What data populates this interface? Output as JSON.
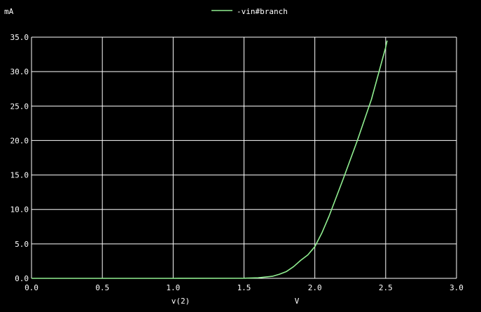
{
  "colors": {
    "background": "#000000",
    "grid": "#ffffff",
    "text": "#ffffff",
    "trace": "#90ee90"
  },
  "chart_data": {
    "type": "line",
    "title": "",
    "xlabel": "v(2)",
    "xunit": "V",
    "yunit": "mA",
    "xlim": [
      0.0,
      3.0
    ],
    "ylim": [
      0.0,
      35.0
    ],
    "xticks": [
      "0.0",
      "0.5",
      "1.0",
      "1.5",
      "2.0",
      "2.5",
      "3.0"
    ],
    "yticks": [
      "0.0",
      "5.0",
      "10.0",
      "15.0",
      "20.0",
      "25.0",
      "30.0",
      "35.0"
    ],
    "grid": true,
    "legend": "top-center",
    "series": [
      {
        "name": "-vin#branch",
        "x": [
          0.0,
          0.5,
          1.0,
          1.5,
          1.6,
          1.7,
          1.75,
          1.8,
          1.85,
          1.9,
          1.95,
          2.0,
          2.05,
          2.1,
          2.2,
          2.3,
          2.4,
          2.5,
          2.51
        ],
        "y": [
          0.0,
          0.0,
          0.0,
          0.02,
          0.08,
          0.3,
          0.6,
          1.0,
          1.7,
          2.6,
          3.4,
          4.6,
          6.6,
          9.0,
          14.4,
          20.0,
          26.0,
          33.5,
          34.5
        ]
      }
    ]
  }
}
